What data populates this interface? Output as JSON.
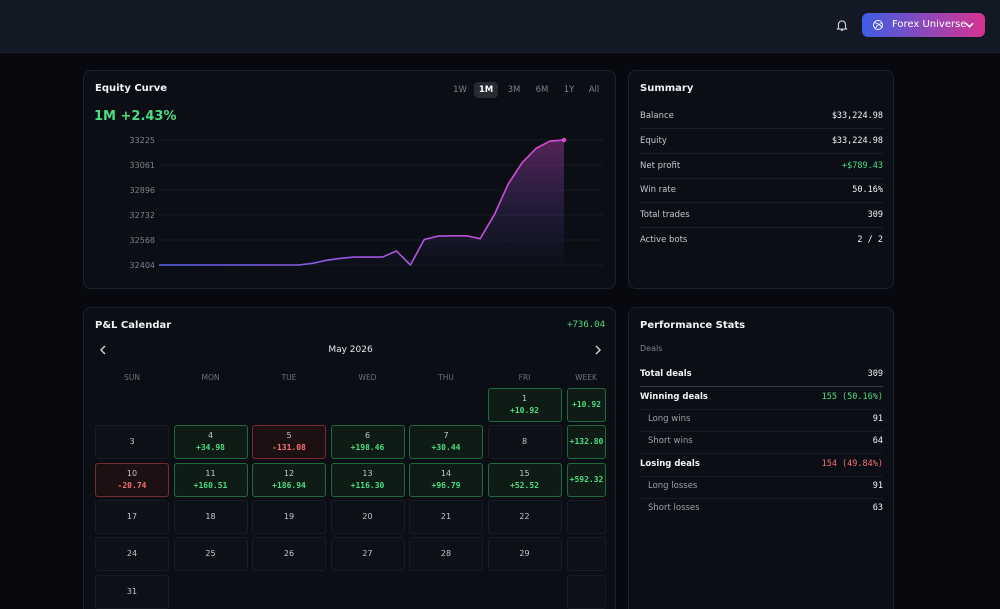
{
  "header": {
    "button": "Forex Universe"
  },
  "equity": {
    "title": "Equity Curve",
    "periods": [
      "1W",
      "1M",
      "3M",
      "6M",
      "1Y",
      "All"
    ],
    "active_period": 1,
    "headline": "1M +2.43%",
    "chart_data": {
      "type": "area",
      "values": [
        32404,
        32404,
        32404,
        32404,
        32404,
        32404,
        32404,
        32404,
        32404,
        32404,
        32404,
        32415,
        32435,
        32448,
        32456,
        32456,
        32456,
        32496,
        32404,
        32572,
        32594,
        32596,
        32596,
        32577,
        32732,
        32935,
        33075,
        33170,
        33218,
        33225
      ],
      "ylim": [
        32404,
        33225
      ],
      "yticks": [
        33225,
        33061,
        32896,
        32732,
        32568,
        32404
      ],
      "grid": true,
      "colors": [
        "#5b62f2",
        "#e04ad2"
      ]
    }
  },
  "summary": {
    "title": "Summary",
    "rows": [
      {
        "label": "Balance",
        "value": "$33,224.98"
      },
      {
        "label": "Equity",
        "value": "$33,224.98"
      },
      {
        "label": "Net profit",
        "value": "+$789.43",
        "tone": "positive"
      },
      {
        "label": "Win rate",
        "value": "50.16%"
      },
      {
        "label": "Total trades",
        "value": "309"
      },
      {
        "label": "Active bots",
        "value": "2 / 2"
      }
    ]
  },
  "calendar": {
    "title": "P&L Calendar",
    "total": "+736.04",
    "month": "May 2026",
    "weekdays": [
      "SUN",
      "MON",
      "TUE",
      "WED",
      "THU",
      "FRI",
      "WEEK"
    ],
    "weeks": [
      {
        "days": [
          null,
          null,
          null,
          null,
          null,
          {
            "day": 1,
            "pnl": "+10.92"
          }
        ],
        "total": "+10.92"
      },
      {
        "days": [
          {
            "day": 3
          },
          {
            "day": 4,
            "pnl": "+34.98"
          },
          {
            "day": 5,
            "pnl": "-131.08"
          },
          {
            "day": 6,
            "pnl": "+198.46"
          },
          {
            "day": 7,
            "pnl": "+30.44"
          },
          {
            "day": 8
          }
        ],
        "total": "+132.80"
      },
      {
        "days": [
          {
            "day": 10,
            "pnl": "-20.74"
          },
          {
            "day": 11,
            "pnl": "+160.51"
          },
          {
            "day": 12,
            "pnl": "+186.94"
          },
          {
            "day": 13,
            "pnl": "+116.30"
          },
          {
            "day": 14,
            "pnl": "+96.79"
          },
          {
            "day": 15,
            "pnl": "+52.52"
          }
        ],
        "total": "+592.32"
      },
      {
        "days": [
          {
            "day": 17
          },
          {
            "day": 18
          },
          {
            "day": 19
          },
          {
            "day": 20
          },
          {
            "day": 21
          },
          {
            "day": 22
          }
        ],
        "total": null
      },
      {
        "days": [
          {
            "day": 24
          },
          {
            "day": 25
          },
          {
            "day": 26
          },
          {
            "day": 27
          },
          {
            "day": 28
          },
          {
            "day": 29
          }
        ],
        "total": null
      },
      {
        "days": [
          {
            "day": 31
          },
          null,
          null,
          null,
          null,
          null
        ],
        "total": null
      }
    ]
  },
  "stats": {
    "title": "Performance Stats",
    "section": "Deals",
    "rows": [
      {
        "label": "Total deals",
        "value": "309",
        "kind": "total"
      },
      {
        "label": "Winning deals",
        "value": "155 (50.16%)",
        "kind": "positive"
      },
      {
        "label": "Long wins",
        "value": "91",
        "kind": "sub"
      },
      {
        "label": "Short wins",
        "value": "64",
        "kind": "sub"
      },
      {
        "label": "Losing deals",
        "value": "154 (49.84%)",
        "kind": "negative"
      },
      {
        "label": "Long losses",
        "value": "91",
        "kind": "sub"
      },
      {
        "label": "Short losses",
        "value": "63",
        "kind": "sub"
      }
    ]
  }
}
